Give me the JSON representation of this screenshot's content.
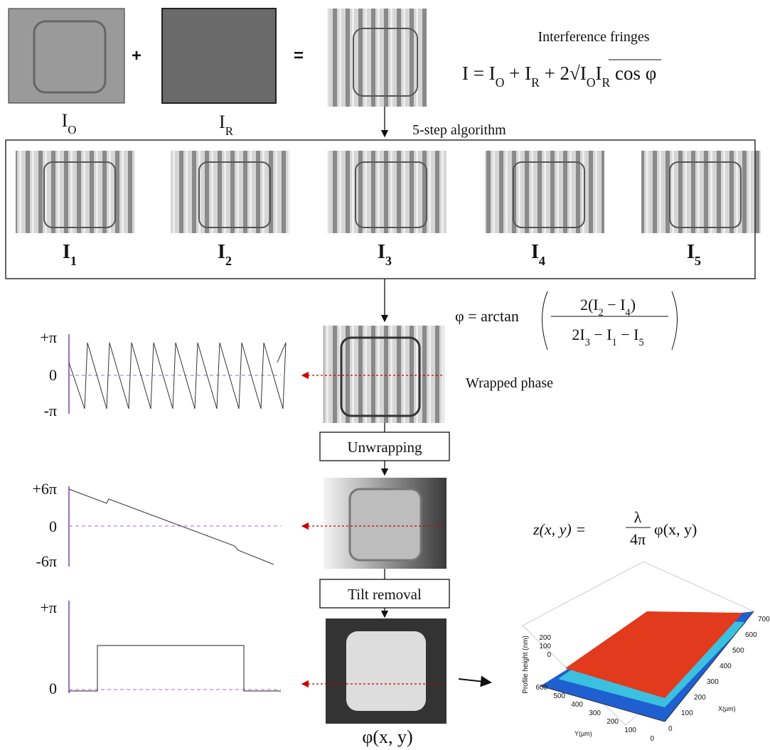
{
  "inputs": {
    "object": {
      "label": [
        "I",
        {
          "sub": "O"
        }
      ]
    },
    "plus": "+",
    "reference": {
      "label": [
        "I",
        {
          "sub": "R"
        }
      ]
    },
    "equals": "="
  },
  "interference": {
    "title": "Interference fringes",
    "equation": [
      "I   = I",
      {
        "sub": "O"
      },
      " + I",
      {
        "sub": "R"
      },
      " + 2√I",
      {
        "sub": "O"
      },
      "I",
      {
        "sub": "R"
      },
      " cos φ"
    ]
  },
  "algorithm": {
    "label": "5-step algorithm",
    "frames": [
      [
        "I",
        {
          "sub": "1"
        }
      ],
      [
        "I",
        {
          "sub": "2"
        }
      ],
      [
        "I",
        {
          "sub": "3"
        }
      ],
      [
        "I",
        {
          "sub": "4"
        }
      ],
      [
        "I",
        {
          "sub": "5"
        }
      ]
    ]
  },
  "phase_equation": {
    "lhs": "φ = arctan",
    "numerator": [
      "2(I",
      {
        "sub": "2"
      },
      " − I",
      {
        "sub": "4"
      },
      ")"
    ],
    "denominator": [
      "2I",
      {
        "sub": "3"
      },
      " − I",
      {
        "sub": "1"
      },
      " − I",
      {
        "sub": "5"
      }
    ]
  },
  "wrapped": {
    "label": "Wrapped phase",
    "axis": [
      "+π",
      "0",
      "-π"
    ]
  },
  "unwrapping": {
    "label": "Unwrapping",
    "axis": [
      "+6π",
      "0",
      "-6π"
    ]
  },
  "tilt": {
    "label": "Tilt removal",
    "axis": [
      "+π",
      "0"
    ]
  },
  "result": {
    "label": "φ(x, y)"
  },
  "height_equation": {
    "lhs": "z(x, y) =",
    "numerator": "λ",
    "denominator": "4π",
    "rhs": "φ(x, y)"
  },
  "plot3d": {
    "z_label": "Profile height (nm)",
    "z_ticks": [
      "200",
      "100",
      "0"
    ],
    "y_label": "Y(µm)",
    "y_ticks": [
      "600",
      "500",
      "400",
      "300",
      "200",
      "100",
      "0"
    ],
    "x_label": "X(µm)",
    "x_ticks": [
      "0",
      "100",
      "200",
      "300",
      "400",
      "500",
      "600",
      "700"
    ]
  }
}
